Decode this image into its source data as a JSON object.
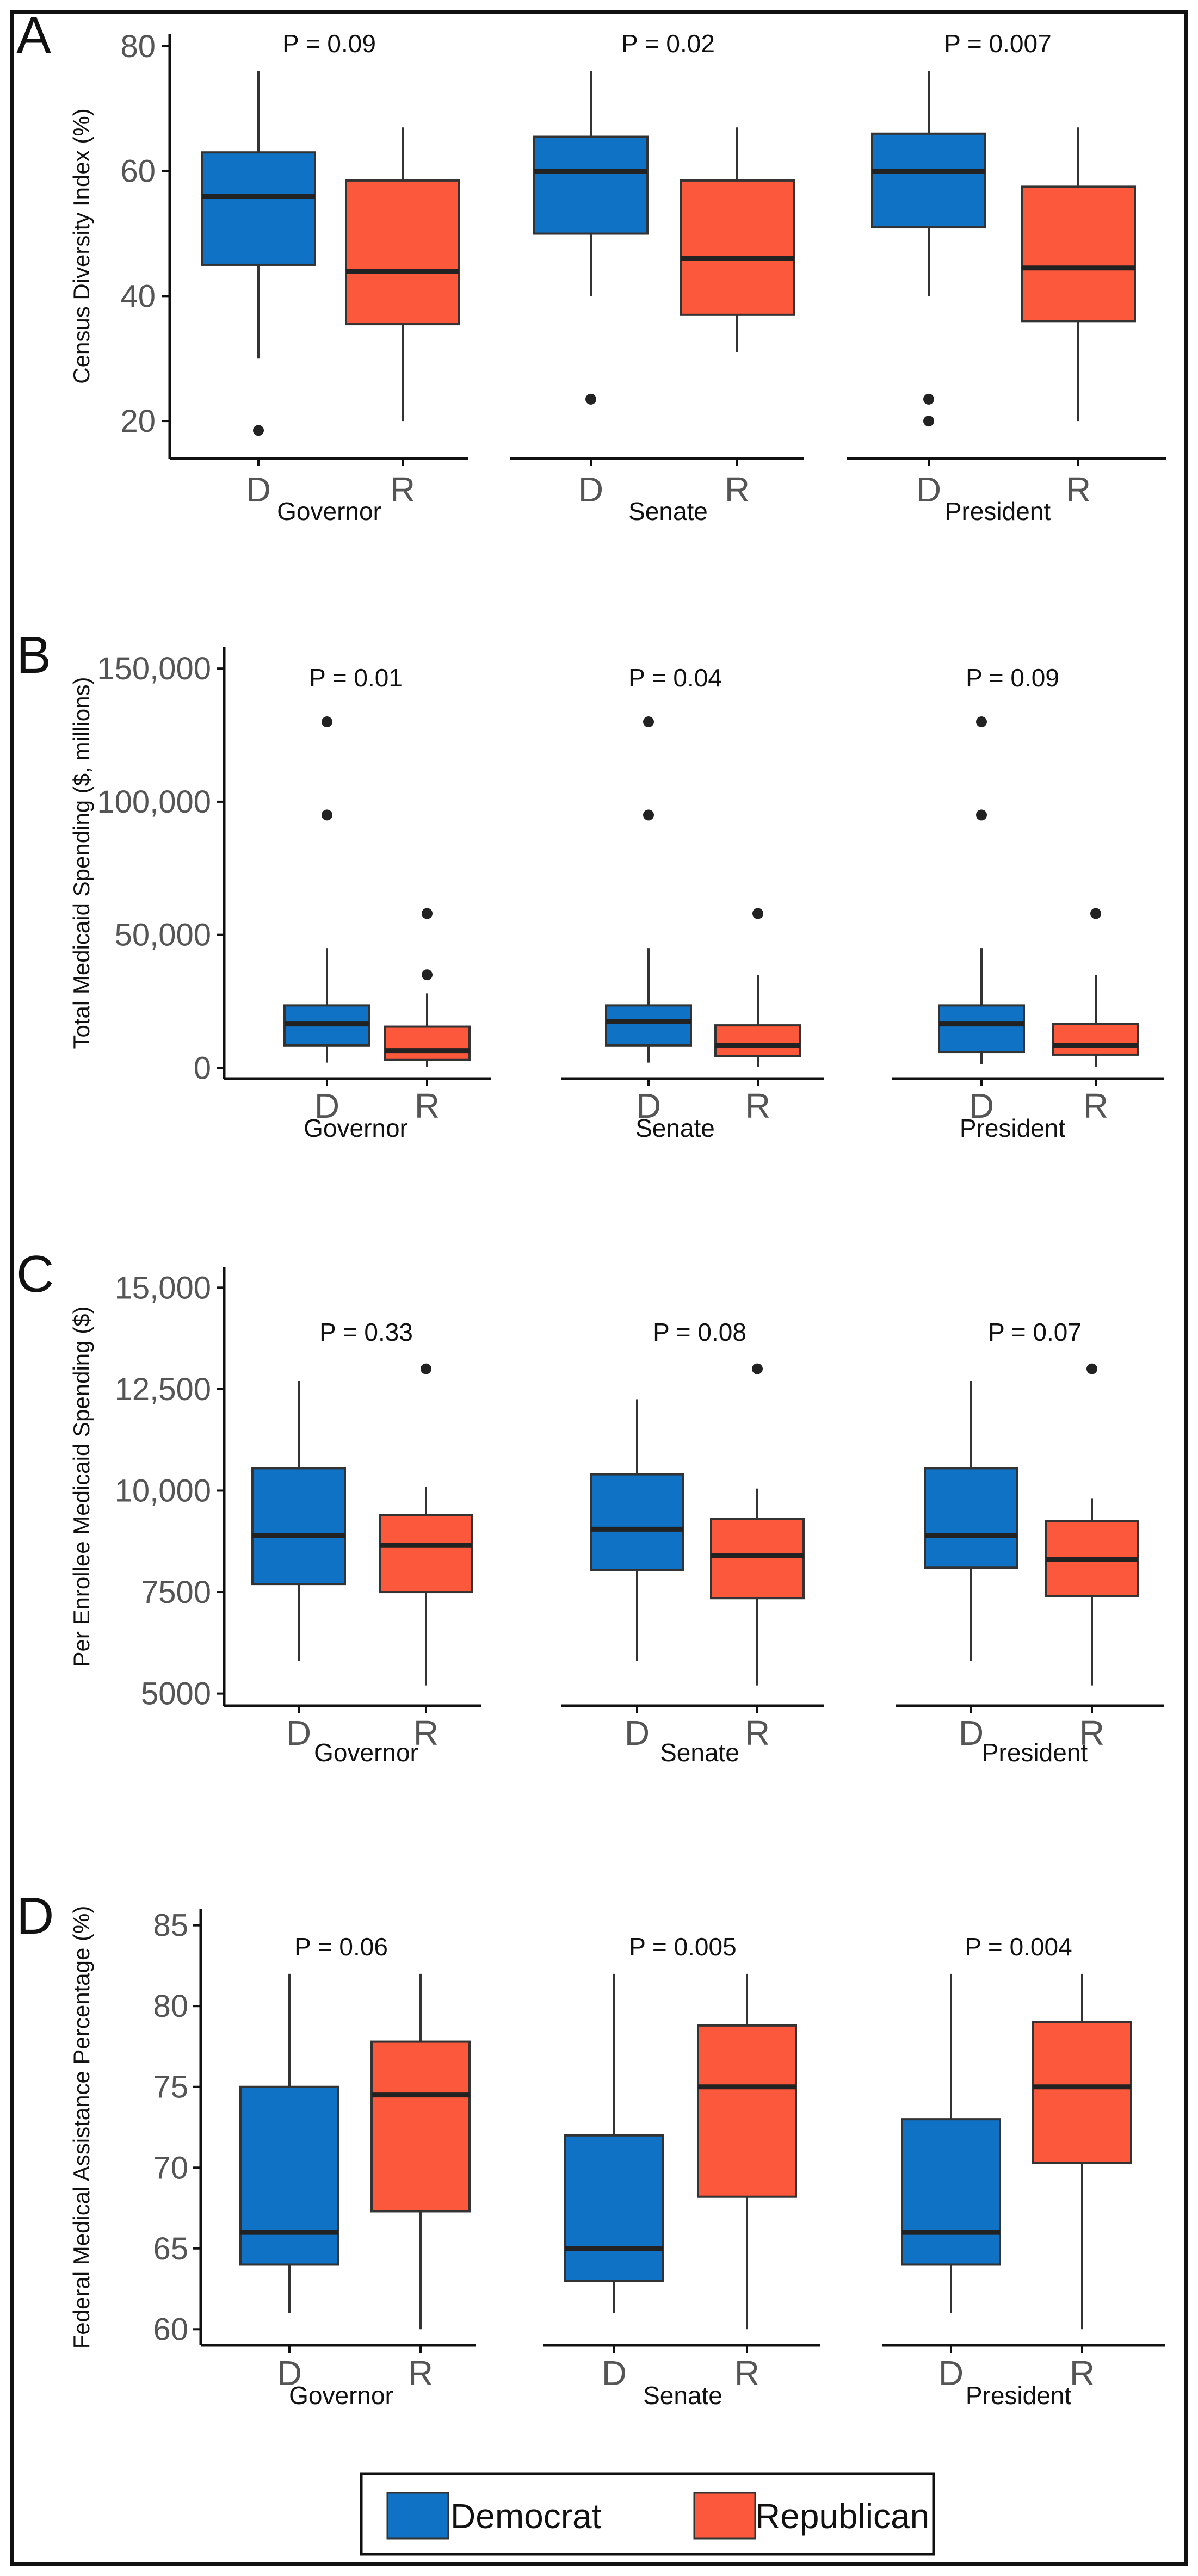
{
  "figure": {
    "legend": {
      "items": [
        {
          "label": "Democrat",
          "color": "#0f72c5"
        },
        {
          "label": "Republican",
          "color": "#fc583b"
        }
      ]
    }
  },
  "chart_data": [
    {
      "type": "box",
      "panel": "A",
      "ylabel": "Census Diversity Index (%)",
      "ylim": [
        14,
        82
      ],
      "yticks": [
        20,
        40,
        60,
        80
      ],
      "ytick_labels": [
        "20",
        "40",
        "60",
        "80"
      ],
      "groups": [
        {
          "label": "Governor",
          "p_value": "P = 0.09",
          "boxes": [
            {
              "category": "D",
              "whisker_low": 30,
              "q1": 45,
              "median": 56,
              "q3": 63,
              "whisker_high": 76,
              "outliers": [
                18.5
              ]
            },
            {
              "category": "R",
              "whisker_low": 20,
              "q1": 35.5,
              "median": 44,
              "q3": 58.5,
              "whisker_high": 67,
              "outliers": []
            }
          ]
        },
        {
          "label": "Senate",
          "p_value": "P = 0.02",
          "boxes": [
            {
              "category": "D",
              "whisker_low": 40,
              "q1": 50,
              "median": 60,
              "q3": 65.5,
              "whisker_high": 76,
              "outliers": [
                23.5
              ]
            },
            {
              "category": "R",
              "whisker_low": 31,
              "q1": 37,
              "median": 46,
              "q3": 58.5,
              "whisker_high": 67,
              "outliers": []
            }
          ]
        },
        {
          "label": "President",
          "p_value": "P = 0.007",
          "boxes": [
            {
              "category": "D",
              "whisker_low": 40,
              "q1": 51,
              "median": 60,
              "q3": 66,
              "whisker_high": 76,
              "outliers": [
                23.5,
                20
              ]
            },
            {
              "category": "R",
              "whisker_low": 20,
              "q1": 36,
              "median": 44.5,
              "q3": 57.5,
              "whisker_high": 67,
              "outliers": []
            }
          ]
        }
      ]
    },
    {
      "type": "box",
      "panel": "B",
      "ylabel": "Total Medicaid Spending ($, millions)",
      "ylim": [
        -4000,
        158000
      ],
      "yticks": [
        0,
        50000,
        100000,
        150000
      ],
      "ytick_labels": [
        "0",
        "50,000",
        "100,000",
        "150,000"
      ],
      "groups": [
        {
          "label": "Governor",
          "p_value": "P = 0.01",
          "boxes": [
            {
              "category": "D",
              "whisker_low": 2000,
              "q1": 8500,
              "median": 16500,
              "q3": 23500,
              "whisker_high": 45000,
              "outliers": [
                95000,
                130000
              ]
            },
            {
              "category": "R",
              "whisker_low": 500,
              "q1": 3000,
              "median": 6500,
              "q3": 15500,
              "whisker_high": 28000,
              "outliers": [
                35000,
                58000
              ]
            }
          ]
        },
        {
          "label": "Senate",
          "p_value": "P = 0.04",
          "boxes": [
            {
              "category": "D",
              "whisker_low": 2000,
              "q1": 8500,
              "median": 17500,
              "q3": 23500,
              "whisker_high": 45000,
              "outliers": [
                95000,
                130000
              ]
            },
            {
              "category": "R",
              "whisker_low": 500,
              "q1": 4500,
              "median": 8500,
              "q3": 16000,
              "whisker_high": 35000,
              "outliers": [
                58000
              ]
            }
          ]
        },
        {
          "label": "President",
          "p_value": "P = 0.09",
          "boxes": [
            {
              "category": "D",
              "whisker_low": 1500,
              "q1": 6000,
              "median": 16500,
              "q3": 23500,
              "whisker_high": 45000,
              "outliers": [
                95000,
                130000
              ]
            },
            {
              "category": "R",
              "whisker_low": 500,
              "q1": 5000,
              "median": 8500,
              "q3": 16500,
              "whisker_high": 35000,
              "outliers": [
                58000
              ]
            }
          ]
        }
      ]
    },
    {
      "type": "box",
      "panel": "C",
      "ylabel": "Per Enrollee Medicaid Spending ($)",
      "ylim": [
        4700,
        15500
      ],
      "yticks": [
        5000,
        7500,
        10000,
        12500,
        15000
      ],
      "ytick_labels": [
        "5000",
        "7500",
        "10,000",
        "12,500",
        "15,000"
      ],
      "groups": [
        {
          "label": "Governor",
          "p_value": "P = 0.33",
          "boxes": [
            {
              "category": "D",
              "whisker_low": 5800,
              "q1": 7700,
              "median": 8900,
              "q3": 10550,
              "whisker_high": 12700,
              "outliers": []
            },
            {
              "category": "R",
              "whisker_low": 5200,
              "q1": 7500,
              "median": 8650,
              "q3": 9400,
              "whisker_high": 10100,
              "outliers": [
                13000
              ]
            }
          ]
        },
        {
          "label": "Senate",
          "p_value": "P = 0.08",
          "boxes": [
            {
              "category": "D",
              "whisker_low": 5800,
              "q1": 8050,
              "median": 9050,
              "q3": 10400,
              "whisker_high": 12250,
              "outliers": []
            },
            {
              "category": "R",
              "whisker_low": 5200,
              "q1": 7350,
              "median": 8400,
              "q3": 9300,
              "whisker_high": 10050,
              "outliers": [
                13000
              ]
            }
          ]
        },
        {
          "label": "President",
          "p_value": "P = 0.07",
          "boxes": [
            {
              "category": "D",
              "whisker_low": 5800,
              "q1": 8100,
              "median": 8900,
              "q3": 10550,
              "whisker_high": 12700,
              "outliers": []
            },
            {
              "category": "R",
              "whisker_low": 5200,
              "q1": 7400,
              "median": 8300,
              "q3": 9250,
              "whisker_high": 9800,
              "outliers": [
                13000
              ]
            }
          ]
        }
      ]
    },
    {
      "type": "box",
      "panel": "D",
      "ylabel": "Federal Medical Assistance Percentage  (%)",
      "ylim": [
        59,
        86
      ],
      "yticks": [
        60,
        65,
        70,
        75,
        80,
        85
      ],
      "ytick_labels": [
        "60",
        "65",
        "70",
        "75",
        "80",
        "85"
      ],
      "groups": [
        {
          "label": "Governor",
          "p_value": "P = 0.06",
          "boxes": [
            {
              "category": "D",
              "whisker_low": 61,
              "q1": 64,
              "median": 66,
              "q3": 75,
              "whisker_high": 82,
              "outliers": []
            },
            {
              "category": "R",
              "whisker_low": 60,
              "q1": 67.3,
              "median": 74.5,
              "q3": 77.8,
              "whisker_high": 82,
              "outliers": []
            }
          ]
        },
        {
          "label": "Senate",
          "p_value": "P = 0.005",
          "boxes": [
            {
              "category": "D",
              "whisker_low": 61,
              "q1": 63,
              "median": 65,
              "q3": 72,
              "whisker_high": 82,
              "outliers": []
            },
            {
              "category": "R",
              "whisker_low": 60,
              "q1": 68.2,
              "median": 75,
              "q3": 78.8,
              "whisker_high": 82,
              "outliers": []
            }
          ]
        },
        {
          "label": "President",
          "p_value": "P = 0.004",
          "boxes": [
            {
              "category": "D",
              "whisker_low": 61,
              "q1": 64,
              "median": 66,
              "q3": 73,
              "whisker_high": 82,
              "outliers": []
            },
            {
              "category": "R",
              "whisker_low": 60,
              "q1": 70.3,
              "median": 75,
              "q3": 79,
              "whisker_high": 82,
              "outliers": []
            }
          ]
        }
      ]
    }
  ]
}
